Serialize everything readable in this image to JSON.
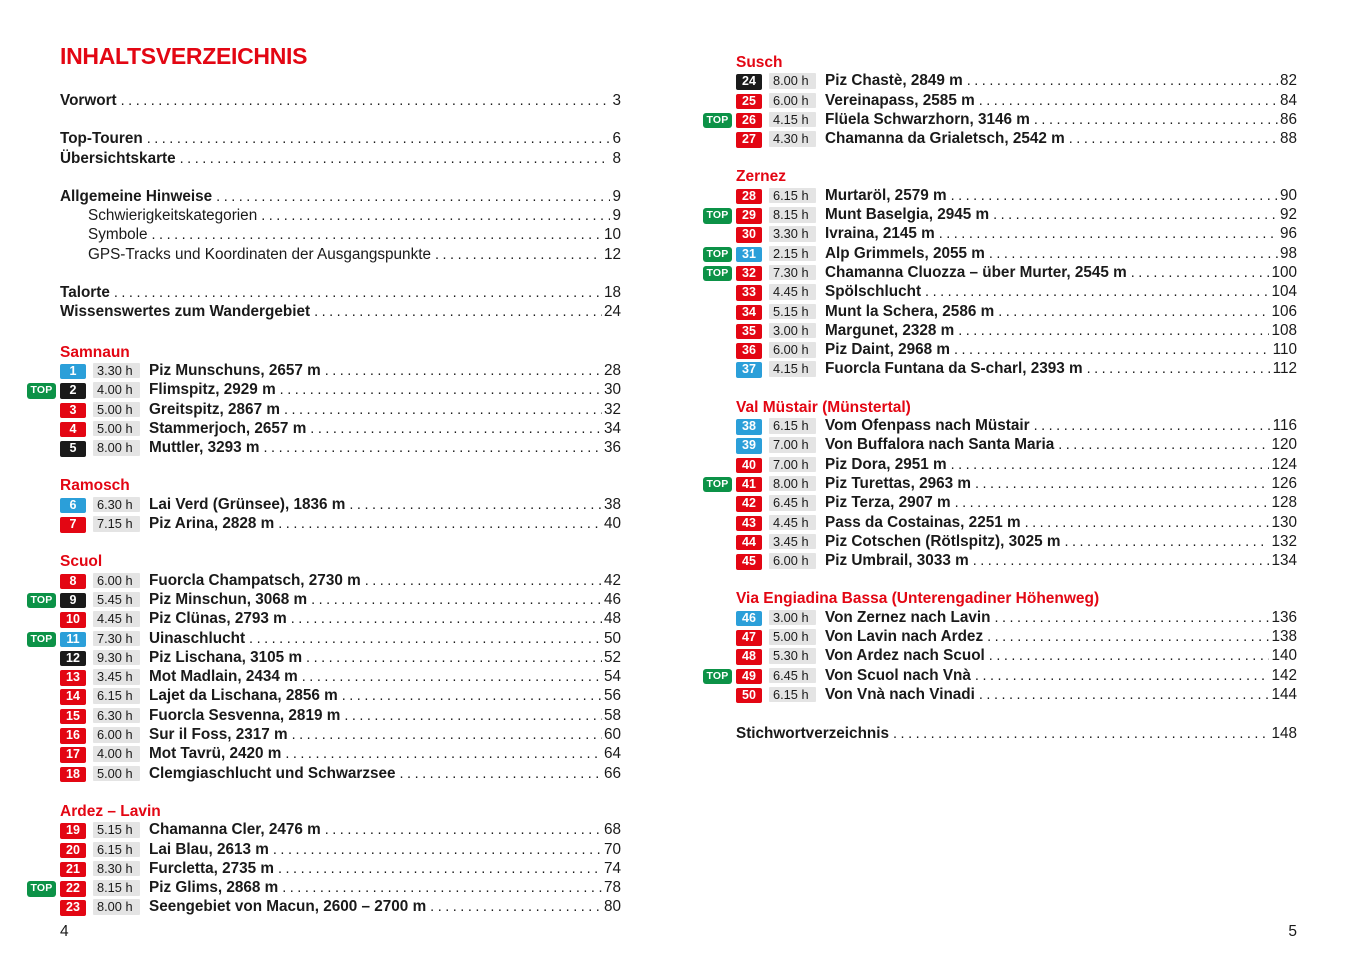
{
  "labels": {
    "top": "TOP"
  },
  "colors": {
    "accent_red": "#e30613",
    "badge_blue": "#2b9fd9",
    "badge_red": "#e30613",
    "badge_black": "#1a1a1a",
    "top_green": "#0c9247",
    "time_bg": "#e4e4e4",
    "text": "#1a1a1a"
  },
  "left": {
    "title": "INHALTSVERZEICHNIS",
    "page_number": "4",
    "front_groups": [
      [
        {
          "label": "Vorwort",
          "page": "3",
          "style": "bold"
        }
      ],
      [
        {
          "label": "Top-Touren",
          "page": "6",
          "style": "bold"
        },
        {
          "label": "Übersichtskarte",
          "page": "8",
          "style": "bold"
        }
      ],
      [
        {
          "label": "Allgemeine Hinweise",
          "page": "9",
          "style": "bold"
        },
        {
          "label": "Schwierigkeitskategorien",
          "page": "9",
          "style": "indent"
        },
        {
          "label": "Symbole",
          "page": "10",
          "style": "indent"
        },
        {
          "label": "GPS-Tracks und Koordinaten der Ausgangspunkte",
          "page": "12",
          "style": "indent"
        }
      ],
      [
        {
          "label": "Talorte",
          "page": "18",
          "style": "bold"
        },
        {
          "label": "Wissenswertes zum Wandergebiet",
          "page": "24",
          "style": "bold"
        }
      ]
    ],
    "sections": [
      {
        "heading": "Samnaun",
        "entries": [
          {
            "num": "1",
            "difficulty": "blue",
            "top": false,
            "time": "3.30 h",
            "title": "Piz Munschuns, 2657 m",
            "page": "28"
          },
          {
            "num": "2",
            "difficulty": "black",
            "top": true,
            "time": "4.00 h",
            "title": "Flimspitz, 2929 m",
            "page": "30"
          },
          {
            "num": "3",
            "difficulty": "red",
            "top": false,
            "time": "5.00 h",
            "title": "Greitspitz, 2867 m",
            "page": "32"
          },
          {
            "num": "4",
            "difficulty": "red",
            "top": false,
            "time": "5.00 h",
            "title": "Stammerjoch, 2657 m",
            "page": "34"
          },
          {
            "num": "5",
            "difficulty": "black",
            "top": false,
            "time": "8.00 h",
            "title": "Muttler, 3293 m",
            "page": "36"
          }
        ]
      },
      {
        "heading": "Ramosch",
        "entries": [
          {
            "num": "6",
            "difficulty": "blue",
            "top": false,
            "time": "6.30 h",
            "title": "Lai Verd (Grünsee), 1836 m",
            "page": "38"
          },
          {
            "num": "7",
            "difficulty": "red",
            "top": false,
            "time": "7.15 h",
            "title": "Piz Arina, 2828 m",
            "page": "40"
          }
        ]
      },
      {
        "heading": "Scuol",
        "entries": [
          {
            "num": "8",
            "difficulty": "red",
            "top": false,
            "time": "6.00 h",
            "title": "Fuorcla Champatsch, 2730 m",
            "page": "42"
          },
          {
            "num": "9",
            "difficulty": "black",
            "top": true,
            "time": "5.45 h",
            "title": "Piz Minschun, 3068 m",
            "page": "46"
          },
          {
            "num": "10",
            "difficulty": "red",
            "top": false,
            "time": "4.45 h",
            "title": "Piz Clünas, 2793 m",
            "page": "48"
          },
          {
            "num": "11",
            "difficulty": "blue",
            "top": true,
            "time": "7.30 h",
            "title": "Uinaschlucht",
            "page": "50"
          },
          {
            "num": "12",
            "difficulty": "black",
            "top": false,
            "time": "9.30 h",
            "title": "Piz Lischana, 3105 m",
            "page": "52"
          },
          {
            "num": "13",
            "difficulty": "red",
            "top": false,
            "time": "3.45 h",
            "title": "Mot Madlain, 2434 m",
            "page": "54"
          },
          {
            "num": "14",
            "difficulty": "red",
            "top": false,
            "time": "6.15 h",
            "title": "Lajet da Lischana, 2856 m",
            "page": "56"
          },
          {
            "num": "15",
            "difficulty": "red",
            "top": false,
            "time": "6.30 h",
            "title": "Fuorcla Sesvenna, 2819 m",
            "page": "58"
          },
          {
            "num": "16",
            "difficulty": "red",
            "top": false,
            "time": "6.00 h",
            "title": "Sur il Foss, 2317 m",
            "page": "60"
          },
          {
            "num": "17",
            "difficulty": "red",
            "top": false,
            "time": "4.00 h",
            "title": "Mot Tavrü, 2420 m",
            "page": "64"
          },
          {
            "num": "18",
            "difficulty": "red",
            "top": false,
            "time": "5.00 h",
            "title": "Clemgiaschlucht und Schwarzsee",
            "page": "66"
          }
        ]
      },
      {
        "heading": "Ardez – Lavin",
        "entries": [
          {
            "num": "19",
            "difficulty": "red",
            "top": false,
            "time": "5.15 h",
            "title": "Chamanna Cler, 2476 m",
            "page": "68"
          },
          {
            "num": "20",
            "difficulty": "red",
            "top": false,
            "time": "6.15 h",
            "title": "Lai Blau, 2613 m",
            "page": "70"
          },
          {
            "num": "21",
            "difficulty": "red",
            "top": false,
            "time": "8.30 h",
            "title": "Furcletta, 2735 m",
            "page": "74"
          },
          {
            "num": "22",
            "difficulty": "red",
            "top": true,
            "time": "8.15 h",
            "title": "Piz Glims, 2868 m",
            "page": "78"
          },
          {
            "num": "23",
            "difficulty": "red",
            "top": false,
            "time": "8.00 h",
            "title": "Seengebiet von Macun, 2600 – 2700 m",
            "page": "80"
          }
        ]
      }
    ]
  },
  "right": {
    "page_number": "5",
    "sections": [
      {
        "heading": "Susch",
        "entries": [
          {
            "num": "24",
            "difficulty": "black",
            "top": false,
            "time": "8.00 h",
            "title": "Piz Chastè, 2849 m",
            "page": "82"
          },
          {
            "num": "25",
            "difficulty": "red",
            "top": false,
            "time": "6.00 h",
            "title": "Vereinapass, 2585 m",
            "page": "84"
          },
          {
            "num": "26",
            "difficulty": "red",
            "top": true,
            "time": "4.15 h",
            "title": "Flüela Schwarzhorn, 3146 m",
            "page": "86"
          },
          {
            "num": "27",
            "difficulty": "red",
            "top": false,
            "time": "4.30 h",
            "title": "Chamanna da Grialetsch, 2542 m",
            "page": "88"
          }
        ]
      },
      {
        "heading": "Zernez",
        "entries": [
          {
            "num": "28",
            "difficulty": "red",
            "top": false,
            "time": "6.15 h",
            "title": "Murtaröl, 2579 m",
            "page": "90"
          },
          {
            "num": "29",
            "difficulty": "red",
            "top": true,
            "time": "8.15 h",
            "title": "Munt Baselgia, 2945 m",
            "page": "92"
          },
          {
            "num": "30",
            "difficulty": "red",
            "top": false,
            "time": "3.30 h",
            "title": "Ivraina, 2145 m",
            "page": "96"
          },
          {
            "num": "31",
            "difficulty": "blue",
            "top": true,
            "time": "2.15 h",
            "title": "Alp Grimmels, 2055 m",
            "page": "98"
          },
          {
            "num": "32",
            "difficulty": "red",
            "top": true,
            "time": "7.30 h",
            "title": "Chamanna Cluozza – über Murter, 2545 m",
            "page": "100"
          },
          {
            "num": "33",
            "difficulty": "red",
            "top": false,
            "time": "4.45 h",
            "title": "Spölschlucht",
            "page": "104"
          },
          {
            "num": "34",
            "difficulty": "red",
            "top": false,
            "time": "5.15 h",
            "title": "Munt la Schera, 2586 m",
            "page": "106"
          },
          {
            "num": "35",
            "difficulty": "red",
            "top": false,
            "time": "3.00 h",
            "title": "Margunet, 2328 m",
            "page": "108"
          },
          {
            "num": "36",
            "difficulty": "red",
            "top": false,
            "time": "6.00 h",
            "title": "Piz Daint, 2968 m",
            "page": "110"
          },
          {
            "num": "37",
            "difficulty": "blue",
            "top": false,
            "time": "4.15 h",
            "title": "Fuorcla Funtana da S-charl, 2393 m",
            "page": "112"
          }
        ]
      },
      {
        "heading": "Val Müstair (Münstertal)",
        "entries": [
          {
            "num": "38",
            "difficulty": "blue",
            "top": false,
            "time": "6.15 h",
            "title": "Vom Ofenpass nach Müstair",
            "page": "116"
          },
          {
            "num": "39",
            "difficulty": "blue",
            "top": false,
            "time": "7.00 h",
            "title": "Von Buffalora nach Santa Maria",
            "page": "120"
          },
          {
            "num": "40",
            "difficulty": "red",
            "top": false,
            "time": "7.00 h",
            "title": "Piz Dora, 2951 m",
            "page": "124"
          },
          {
            "num": "41",
            "difficulty": "red",
            "top": true,
            "time": "8.00 h",
            "title": "Piz Turettas, 2963 m",
            "page": "126"
          },
          {
            "num": "42",
            "difficulty": "red",
            "top": false,
            "time": "6.45 h",
            "title": "Piz Terza, 2907 m",
            "page": "128"
          },
          {
            "num": "43",
            "difficulty": "red",
            "top": false,
            "time": "4.45 h",
            "title": "Pass da Costainas, 2251 m",
            "page": "130"
          },
          {
            "num": "44",
            "difficulty": "red",
            "top": false,
            "time": "3.45 h",
            "title": "Piz Cotschen (Rötlspitz), 3025 m",
            "page": "132"
          },
          {
            "num": "45",
            "difficulty": "red",
            "top": false,
            "time": "6.00 h",
            "title": "Piz Umbrail, 3033 m",
            "page": "134"
          }
        ]
      },
      {
        "heading": "Via Engiadina Bassa (Unterengadiner Höhenweg)",
        "entries": [
          {
            "num": "46",
            "difficulty": "blue",
            "top": false,
            "time": "3.00 h",
            "title": "Von Zernez nach Lavin",
            "page": "136"
          },
          {
            "num": "47",
            "difficulty": "red",
            "top": false,
            "time": "5.00 h",
            "title": "Von Lavin nach Ardez",
            "page": "138"
          },
          {
            "num": "48",
            "difficulty": "red",
            "top": false,
            "time": "5.30 h",
            "title": "Von Ardez nach Scuol",
            "page": "140"
          },
          {
            "num": "49",
            "difficulty": "red",
            "top": true,
            "time": "6.45 h",
            "title": "Von Scuol nach Vnà",
            "page": "142"
          },
          {
            "num": "50",
            "difficulty": "red",
            "top": false,
            "time": "6.15 h",
            "title": "Von Vnà nach Vinadi",
            "page": "144"
          }
        ]
      }
    ],
    "back_items": [
      {
        "label": "Stichwortverzeichnis",
        "page": "148",
        "style": "bold"
      }
    ]
  }
}
